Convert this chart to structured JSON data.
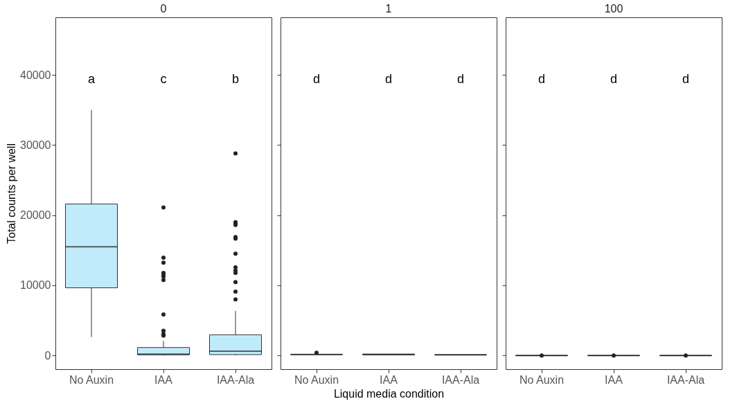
{
  "chart_data": [
    {
      "type": "box",
      "title": "0",
      "categories": [
        "No Auxin",
        "IAA",
        "IAA-Ala"
      ],
      "ylabel": "Total counts per well",
      "ylim": [
        -1950,
        48200
      ],
      "yticks": [
        0,
        10000,
        20000,
        30000,
        40000
      ],
      "grid": false,
      "marker": "circle",
      "series": [
        {
          "color": "#c0ebfa",
          "boxes": [
            {
              "low": 2630,
              "q1": 9650,
              "median": 15500,
              "q3": 21600,
              "high": 35000
            },
            {
              "low": 0,
              "q1": 100,
              "median": 200,
              "q3": 1140,
              "high": 2080,
              "outliers": [
                21100,
                13950,
                13240,
                11780,
                11510,
                11250,
                10760,
                5850,
                3540,
                3060,
                2830
              ]
            },
            {
              "low": 0,
              "q1": 130,
              "median": 620,
              "q3": 2960,
              "high": 6370,
              "outliers": [
                28800,
                19000,
                18830,
                18600,
                16880,
                16650,
                14500,
                12550,
                12100,
                11770,
                10470,
                9100,
                8000
              ]
            }
          ]
        }
      ],
      "annotations": [
        "a",
        "c",
        "b"
      ]
    },
    {
      "type": "box",
      "title": "1",
      "categories": [
        "No Auxin",
        "IAA",
        "IAA-Ala"
      ],
      "xlabel": "Liquid media condition",
      "ylim": [
        -1950,
        48200
      ],
      "yticks": [
        0,
        10000,
        20000,
        30000,
        40000
      ],
      "tick_labels": "x",
      "grid": false,
      "marker": "circle",
      "series": [
        {
          "boxes": [
            {
              "low": 150,
              "q1": 150,
              "median": 150,
              "q3": 150,
              "high": 150,
              "outliers": [
                400
              ]
            },
            {
              "low": 100,
              "q1": 100,
              "median": 150,
              "q3": 200,
              "high": 200
            },
            {
              "low": 100,
              "q1": 100,
              "median": 100,
              "q3": 100,
              "high": 100
            }
          ]
        }
      ],
      "annotations": [
        "d",
        "d",
        "d"
      ]
    },
    {
      "type": "box",
      "title": "100",
      "categories": [
        "No Auxin",
        "IAA",
        "IAA-Ala"
      ],
      "ylim": [
        -1950,
        48200
      ],
      "yticks": [
        0,
        10000,
        20000,
        30000,
        40000
      ],
      "tick_labels": "x",
      "grid": false,
      "marker": "circle",
      "series": [
        {
          "boxes": [
            {
              "low": 0,
              "q1": 0,
              "median": 0,
              "q3": 0,
              "high": 0,
              "outliers": [
                0
              ]
            },
            {
              "low": 0,
              "q1": 0,
              "median": 0,
              "q3": 0,
              "high": 0,
              "outliers": [
                0
              ]
            },
            {
              "low": 0,
              "q1": 0,
              "median": 0,
              "q3": 0,
              "high": 0,
              "outliers": [
                0
              ]
            }
          ]
        }
      ],
      "annotations": [
        "d",
        "d",
        "d"
      ]
    }
  ]
}
